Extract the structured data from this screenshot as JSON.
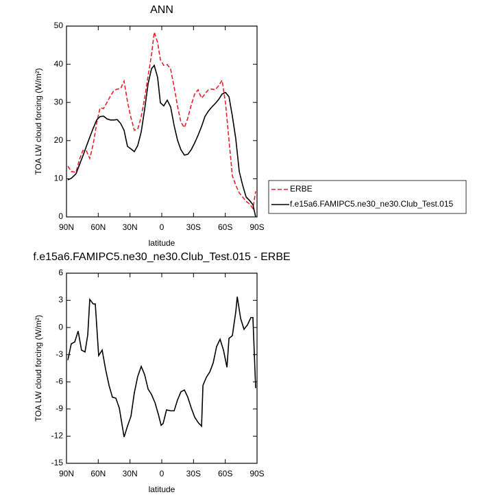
{
  "chart_data": [
    {
      "type": "line",
      "title": "ANN",
      "xlabel": "latitude",
      "ylabel": "TOA LW cloud forcing (W/m²)",
      "xlim": [
        90,
        -90
      ],
      "xticks": [
        {
          "value": 90,
          "label": "90N"
        },
        {
          "value": 60,
          "label": "60N"
        },
        {
          "value": 30,
          "label": "30N"
        },
        0,
        {
          "value": -30,
          "label": "30S"
        },
        {
          "value": -60,
          "label": "60S"
        },
        {
          "value": -90,
          "label": "90S"
        }
      ],
      "ylim": [
        0,
        50
      ],
      "yticks": [
        0,
        10,
        20,
        30,
        40,
        50
      ],
      "legend": "right",
      "x": [
        88.7,
        85.5,
        81,
        77.7,
        74.5,
        71.2,
        68,
        64.8,
        61.5,
        58.3,
        55,
        51.8,
        48.6,
        45.3,
        42.1,
        38.9,
        35.6,
        32.4,
        29.1,
        25.9,
        22.7,
        19.4,
        16.2,
        12.9,
        9.7,
        7.1,
        3.9,
        1.3,
        -1.9,
        -5.2,
        -8.4,
        -11.7,
        -14.9,
        -18.1,
        -21.4,
        -24.6,
        -27.8,
        -31.1,
        -34.3,
        -37.6,
        -40.8,
        -44,
        -47.3,
        -50.5,
        -53.8,
        -57,
        -60.2,
        -63.5,
        -66.7,
        -69.9,
        -73.2,
        -76.4,
        -79.7,
        -82.9,
        -86.1,
        -88.7
      ],
      "series": [
        {
          "name": "ERBE",
          "color": "#e8202a",
          "dashed": true,
          "values": [
            13.3,
            11.9,
            11.7,
            15.1,
            17.4,
            17.3,
            15.3,
            19,
            24.5,
            28.6,
            28.4,
            30,
            31.6,
            33.1,
            33.5,
            33.6,
            35.6,
            30.2,
            26,
            22.7,
            23,
            26.3,
            31.1,
            37,
            42.4,
            48.4,
            45.7,
            41.2,
            39.7,
            39.9,
            38.7,
            34,
            29,
            24.8,
            23.4,
            25.9,
            29.3,
            32.2,
            33.3,
            31.1,
            32.2,
            33.3,
            33.5,
            33.3,
            34.4,
            35.8,
            29.9,
            20.1,
            10.8,
            8.3,
            6.3,
            5.2,
            4.1,
            3.4,
            2.2,
            6.7
          ]
        },
        {
          "name": "f.e15a6.FAMIPC5.ne30_ne30.Club_Test.015",
          "color": "#000000",
          "dashed": false,
          "values": [
            9.7,
            10.1,
            11.3,
            13.7,
            16,
            18.5,
            20.9,
            23.2,
            25.4,
            26.3,
            26.4,
            25.7,
            25.4,
            25.4,
            25.5,
            24.5,
            22.7,
            18.5,
            17.8,
            17.1,
            18.7,
            22.3,
            28.1,
            34.9,
            38.8,
            39.7,
            36.5,
            29.9,
            29.1,
            30.6,
            28.8,
            23.9,
            20.1,
            17.6,
            16.2,
            16.4,
            17.6,
            19.4,
            21.4,
            23.7,
            26.3,
            27.7,
            28.8,
            29.7,
            30.8,
            32.2,
            32.6,
            31.5,
            26.4,
            20.5,
            11.9,
            8.3,
            5.2,
            4.3,
            3.2,
            0
          ]
        }
      ]
    },
    {
      "type": "line",
      "title": "f.e15a6.FAMIPC5.ne30_ne30.Club_Test.015 - ERBE",
      "xlabel": "latitude",
      "ylabel": "TOA LW cloud forcing (W/m²)",
      "xlim": [
        90,
        -90
      ],
      "xticks": [
        {
          "value": 90,
          "label": "90N"
        },
        {
          "value": 60,
          "label": "60N"
        },
        {
          "value": 30,
          "label": "30N"
        },
        0,
        {
          "value": -30,
          "label": "30S"
        },
        {
          "value": -60,
          "label": "60S"
        },
        {
          "value": -90,
          "label": "90S"
        }
      ],
      "ylim": [
        -15,
        6
      ],
      "yticks": [
        -15,
        -12,
        -9,
        -6,
        -3,
        0,
        3,
        6
      ],
      "x": [
        88.7,
        85.5,
        82.2,
        79,
        75.8,
        72.5,
        69.9,
        68,
        64.7,
        62.8,
        59.6,
        56.3,
        53.1,
        49.8,
        46.6,
        43.4,
        40.1,
        35.6,
        32.4,
        29.1,
        25.9,
        22.7,
        19.4,
        16.2,
        12.9,
        9.7,
        6.4,
        3.2,
        0.6,
        -1.3,
        -4.5,
        -8.4,
        -11.7,
        -14.9,
        -18.1,
        -21.4,
        -24.6,
        -27.9,
        -31.1,
        -34.4,
        -37.6,
        -38.9,
        -42.1,
        -45.4,
        -48.6,
        -51.8,
        -55.1,
        -58.3,
        -61.6,
        -63.5,
        -66.7,
        -70,
        -71.3,
        -74.5,
        -77.7,
        -81,
        -84.2,
        -86.1,
        -88.7
      ],
      "series": [
        {
          "color": "#000000",
          "dashed": false,
          "values": [
            -3.6,
            -1.8,
            -1.6,
            -0.4,
            -2.5,
            -2.7,
            -0.8,
            3.1,
            2.6,
            2.6,
            -3.1,
            -2.5,
            -4.6,
            -6.4,
            -7.7,
            -7.8,
            -8.9,
            -12.1,
            -10.9,
            -9.8,
            -7.2,
            -5.4,
            -4.3,
            -5.2,
            -6.8,
            -7.4,
            -8.3,
            -9.6,
            -10.8,
            -10.6,
            -9.1,
            -9.2,
            -9.2,
            -8,
            -7.1,
            -6.9,
            -7.7,
            -8.9,
            -9.9,
            -10.5,
            -10.9,
            -6.4,
            -5.5,
            -4.9,
            -3.9,
            -2.1,
            -1.3,
            -2.5,
            -4.4,
            -1.2,
            -0.9,
            1.8,
            3.4,
            1,
            -0.2,
            0.3,
            1.1,
            1.1,
            -6.7
          ]
        }
      ]
    }
  ]
}
